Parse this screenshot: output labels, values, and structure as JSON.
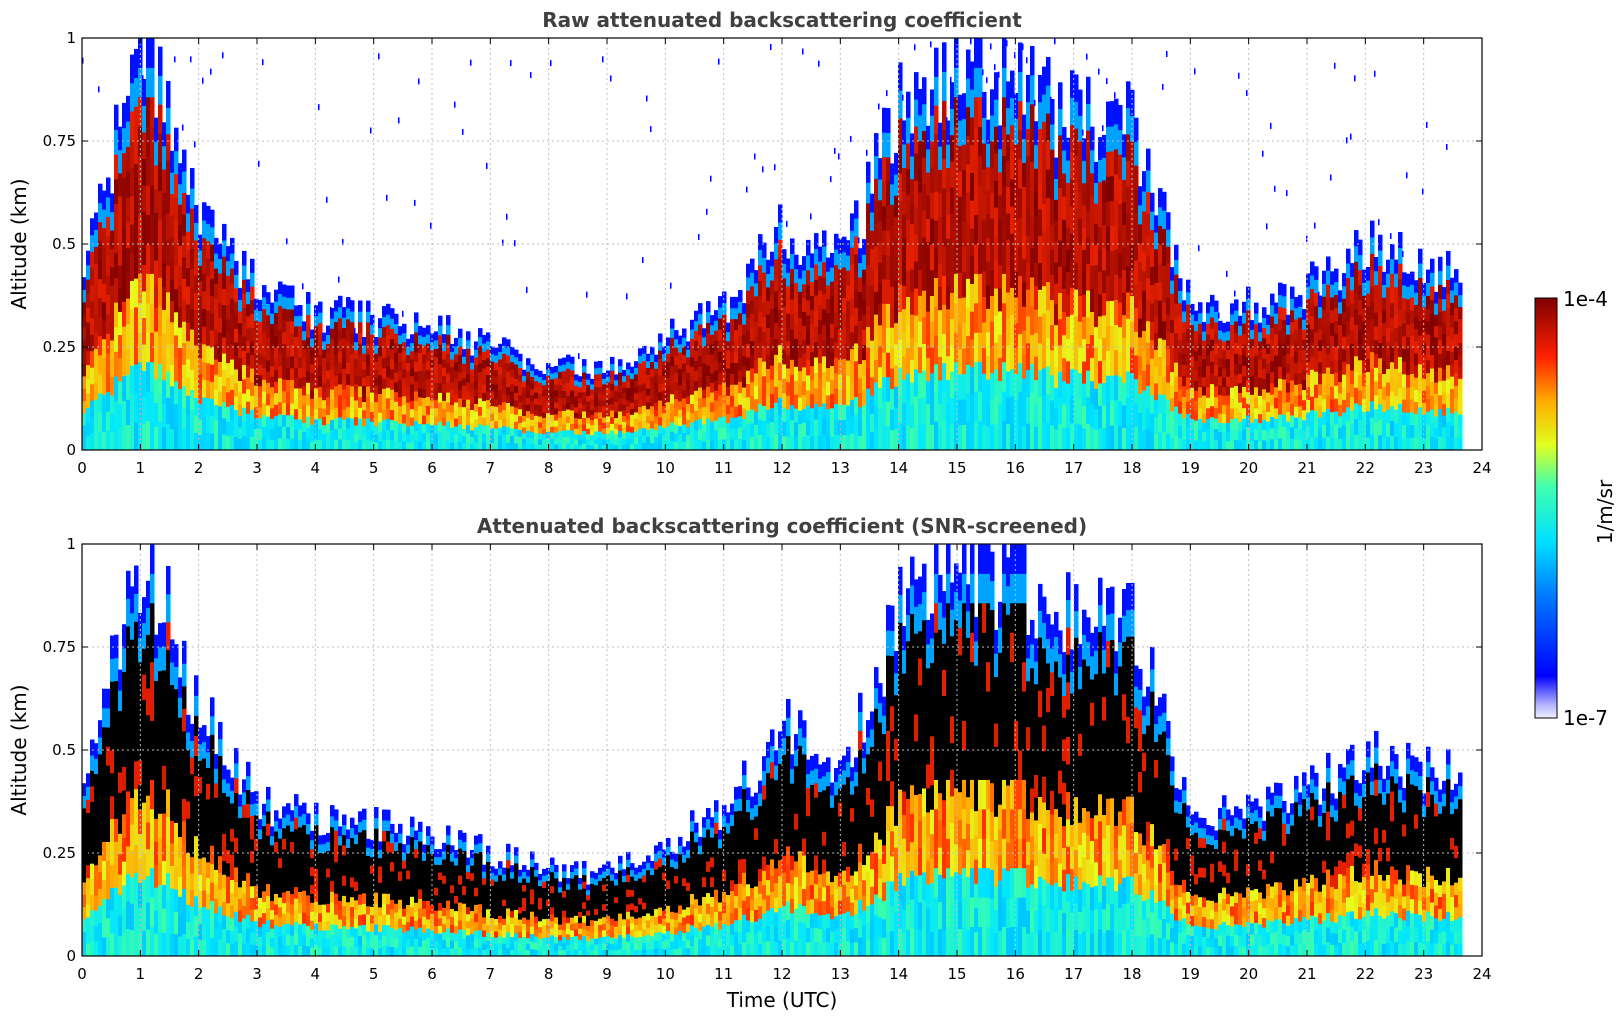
{
  "chart_data": [
    {
      "type": "heatmap",
      "title": "Raw attenuated backscattering coefficient",
      "xlabel": "",
      "ylabel": "Altitude (km)",
      "xlim": [
        0,
        24
      ],
      "ylim": [
        0,
        1
      ],
      "x_ticks": [
        "0",
        "1",
        "2",
        "3",
        "4",
        "5",
        "6",
        "7",
        "8",
        "9",
        "10",
        "11",
        "12",
        "13",
        "14",
        "15",
        "16",
        "17",
        "18",
        "19",
        "20",
        "21",
        "22",
        "23",
        "24"
      ],
      "y_ticks": [
        "0",
        "0.25",
        "0.5",
        "0.75",
        "1"
      ],
      "screened": false,
      "grid": true,
      "layer_top_km": [
        {
          "t": 0,
          "top": 0.45
        },
        {
          "t": 1,
          "top": 1.0
        },
        {
          "t": 2,
          "top": 0.6
        },
        {
          "t": 3,
          "top": 0.38
        },
        {
          "t": 4,
          "top": 0.33
        },
        {
          "t": 5,
          "top": 0.32
        },
        {
          "t": 6,
          "top": 0.3
        },
        {
          "t": 7,
          "top": 0.25
        },
        {
          "t": 8,
          "top": 0.21
        },
        {
          "t": 9,
          "top": 0.2
        },
        {
          "t": 10,
          "top": 0.28
        },
        {
          "t": 11,
          "top": 0.35
        },
        {
          "t": 12,
          "top": 0.55
        },
        {
          "t": 13,
          "top": 0.45
        },
        {
          "t": 14,
          "top": 0.85
        },
        {
          "t": 15,
          "top": 0.95
        },
        {
          "t": 16,
          "top": 0.9
        },
        {
          "t": 17,
          "top": 0.8
        },
        {
          "t": 18,
          "top": 0.8
        },
        {
          "t": 19,
          "top": 0.33
        },
        {
          "t": 20,
          "top": 0.35
        },
        {
          "t": 21,
          "top": 0.4
        },
        {
          "t": 22,
          "top": 0.5
        },
        {
          "t": 23,
          "top": 0.45
        },
        {
          "t": 23.7,
          "top": 0.45
        }
      ]
    },
    {
      "type": "heatmap",
      "title": "Attenuated backscattering coefficient (SNR-screened)",
      "xlabel": "Time (UTC)",
      "ylabel": "Altitude (km)",
      "xlim": [
        0,
        24
      ],
      "ylim": [
        0,
        1
      ],
      "x_ticks": [
        "0",
        "1",
        "2",
        "3",
        "4",
        "5",
        "6",
        "7",
        "8",
        "9",
        "10",
        "11",
        "12",
        "13",
        "14",
        "15",
        "16",
        "17",
        "18",
        "19",
        "20",
        "21",
        "22",
        "23",
        "24"
      ],
      "y_ticks": [
        "0",
        "0.25",
        "0.5",
        "0.75",
        "1"
      ],
      "screened": true,
      "grid": true
    }
  ],
  "colorbar": {
    "label": "1/m/sr",
    "max_label": "1e-4",
    "min_label": "1e-7",
    "min_value": 1e-07,
    "max_value": 0.0001,
    "scale": "log",
    "colormap": "jet"
  }
}
